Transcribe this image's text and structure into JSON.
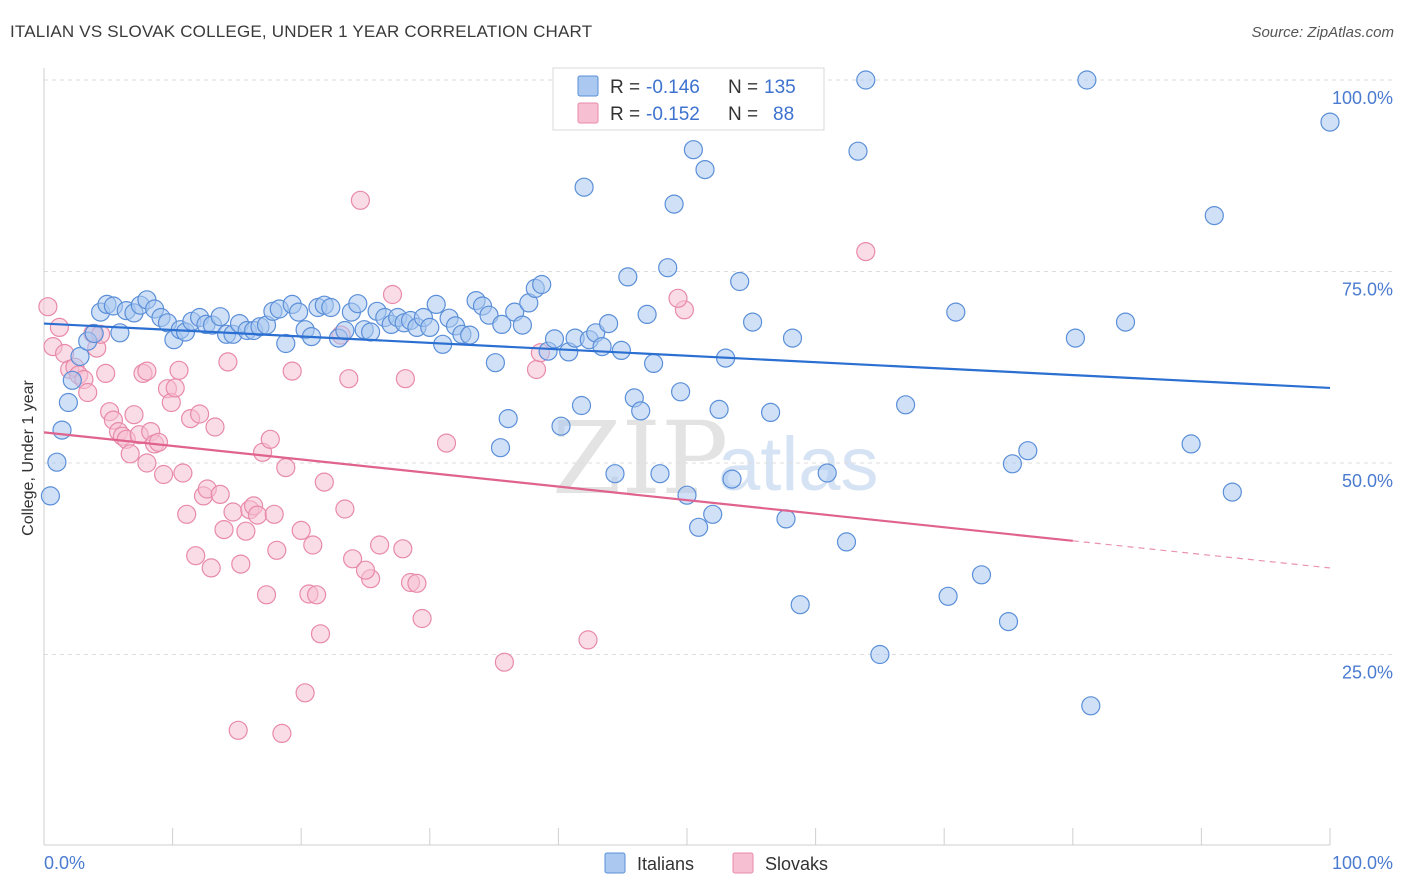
{
  "header": {
    "title": "ITALIAN VS SLOVAK COLLEGE, UNDER 1 YEAR CORRELATION CHART",
    "source": "Source: ZipAtlas.com"
  },
  "watermark": {
    "zip": "ZIP",
    "atlas": "atlas"
  },
  "legend": {
    "rows": [
      {
        "r_label": "R = ",
        "r_value": "-0.146",
        "n_label": "N = ",
        "n_value": "135"
      },
      {
        "r_label": "R = ",
        "r_value": "-0.152",
        "n_label": "N = ",
        "n_value": "88"
      }
    ]
  },
  "bottom_legend": {
    "italians": "Italians",
    "slovaks": "Slovaks"
  },
  "chart_data": {
    "type": "scatter",
    "title": "ITALIAN VS SLOVAK COLLEGE, UNDER 1 YEAR CORRELATION CHART",
    "xlabel": "",
    "ylabel": "College, Under 1 year",
    "xlim": [
      0,
      100
    ],
    "ylim": [
      0,
      100
    ],
    "x_tick_labels": [
      "0.0%",
      "100.0%"
    ],
    "y_tick_labels": [
      "100.0%",
      "75.0%",
      "50.0%",
      "25.0%"
    ],
    "y_ticks": [
      100,
      75,
      50,
      25
    ],
    "grid": true,
    "legend_position": "top-center",
    "colors": {
      "italians_fill": "#aac8f0",
      "italians_stroke": "#5b8fd8",
      "italians_line": "#2a6fd1",
      "slovaks_fill": "#f6c0d2",
      "slovaks_stroke": "#e88aa9",
      "slovaks_line": "#e0628e",
      "grid": "#dcdcdc",
      "axis_tick_text": "#4a7bd0"
    },
    "series": [
      {
        "name": "Italians",
        "R": -0.146,
        "N": 135,
        "trend": {
          "x0": 0,
          "y0": 68.2,
          "x1": 100,
          "y1": 59.8
        },
        "points": [
          [
            0.5,
            45.7
          ],
          [
            1.0,
            50.1
          ],
          [
            1.4,
            54.3
          ],
          [
            1.9,
            57.9
          ],
          [
            2.2,
            60.8
          ],
          [
            2.8,
            63.9
          ],
          [
            3.4,
            65.9
          ],
          [
            3.9,
            66.9
          ],
          [
            4.4,
            69.7
          ],
          [
            4.9,
            70.7
          ],
          [
            5.4,
            70.5
          ],
          [
            5.9,
            67.0
          ],
          [
            6.4,
            69.9
          ],
          [
            7.0,
            69.6
          ],
          [
            7.5,
            70.6
          ],
          [
            8.0,
            71.3
          ],
          [
            8.6,
            70.1
          ],
          [
            9.1,
            69.0
          ],
          [
            9.6,
            68.3
          ],
          [
            10.1,
            66.1
          ],
          [
            10.6,
            67.4
          ],
          [
            11.0,
            67.1
          ],
          [
            11.5,
            68.5
          ],
          [
            12.1,
            69.0
          ],
          [
            12.6,
            68.1
          ],
          [
            13.1,
            68.0
          ],
          [
            13.7,
            69.1
          ],
          [
            14.2,
            66.8
          ],
          [
            14.7,
            66.8
          ],
          [
            15.2,
            68.2
          ],
          [
            15.8,
            67.3
          ],
          [
            16.3,
            67.3
          ],
          [
            16.8,
            67.8
          ],
          [
            17.3,
            68.0
          ],
          [
            17.8,
            69.8
          ],
          [
            18.3,
            70.1
          ],
          [
            18.8,
            65.6
          ],
          [
            19.3,
            70.7
          ],
          [
            19.8,
            69.7
          ],
          [
            20.3,
            67.4
          ],
          [
            20.8,
            66.5
          ],
          [
            21.3,
            70.3
          ],
          [
            21.8,
            70.6
          ],
          [
            22.3,
            70.3
          ],
          [
            22.9,
            66.3
          ],
          [
            23.4,
            67.3
          ],
          [
            23.9,
            69.7
          ],
          [
            24.4,
            70.8
          ],
          [
            24.9,
            67.4
          ],
          [
            25.4,
            67.1
          ],
          [
            25.9,
            69.8
          ],
          [
            26.5,
            69.0
          ],
          [
            27.0,
            68.1
          ],
          [
            27.5,
            69.0
          ],
          [
            28.0,
            68.3
          ],
          [
            28.5,
            68.6
          ],
          [
            29.0,
            67.7
          ],
          [
            29.5,
            69.0
          ],
          [
            30.0,
            67.7
          ],
          [
            30.5,
            70.7
          ],
          [
            31.0,
            65.5
          ],
          [
            31.5,
            68.9
          ],
          [
            32.0,
            67.9
          ],
          [
            32.5,
            66.8
          ],
          [
            33.1,
            66.7
          ],
          [
            33.6,
            71.2
          ],
          [
            34.1,
            70.5
          ],
          [
            34.6,
            69.3
          ],
          [
            35.1,
            63.1
          ],
          [
            35.6,
            68.1
          ],
          [
            36.1,
            55.8
          ],
          [
            36.6,
            69.7
          ],
          [
            37.2,
            68.0
          ],
          [
            37.7,
            70.9
          ],
          [
            38.2,
            72.8
          ],
          [
            38.7,
            73.3
          ],
          [
            39.2,
            64.6
          ],
          [
            39.7,
            66.2
          ],
          [
            40.2,
            54.8
          ],
          [
            40.8,
            64.5
          ],
          [
            41.3,
            66.3
          ],
          [
            41.8,
            57.5
          ],
          [
            42.4,
            66.1
          ],
          [
            42.9,
            67.0
          ],
          [
            43.4,
            65.2
          ],
          [
            43.9,
            68.2
          ],
          [
            44.4,
            48.6
          ],
          [
            44.9,
            64.7
          ],
          [
            45.4,
            74.3
          ],
          [
            45.9,
            58.5
          ],
          [
            46.4,
            56.8
          ],
          [
            46.9,
            69.4
          ],
          [
            47.4,
            63.0
          ],
          [
            47.9,
            48.6
          ],
          [
            48.5,
            75.5
          ],
          [
            49.0,
            83.8
          ],
          [
            49.5,
            59.3
          ],
          [
            50.0,
            45.8
          ],
          [
            50.5,
            90.9
          ],
          [
            50.9,
            41.6
          ],
          [
            51.4,
            88.3
          ],
          [
            52.0,
            43.3
          ],
          [
            52.5,
            57.0
          ],
          [
            53.0,
            63.7
          ],
          [
            53.5,
            47.9
          ],
          [
            54.1,
            73.7
          ],
          [
            55.1,
            68.4
          ],
          [
            56.5,
            56.6
          ],
          [
            57.7,
            42.7
          ],
          [
            58.2,
            66.3
          ],
          [
            58.8,
            31.5
          ],
          [
            59.8,
            100.0
          ],
          [
            60.9,
            48.7
          ],
          [
            62.4,
            39.7
          ],
          [
            63.3,
            90.7
          ],
          [
            63.9,
            100.0
          ],
          [
            65.0,
            25.0
          ],
          [
            67.0,
            57.6
          ],
          [
            70.3,
            32.6
          ],
          [
            70.9,
            69.7
          ],
          [
            72.9,
            35.4
          ],
          [
            75.0,
            29.3
          ],
          [
            75.3,
            49.9
          ],
          [
            76.5,
            51.6
          ],
          [
            80.2,
            66.3
          ],
          [
            81.1,
            100.0
          ],
          [
            81.4,
            18.3
          ],
          [
            84.1,
            68.4
          ],
          [
            89.2,
            52.5
          ],
          [
            91.0,
            82.3
          ],
          [
            92.4,
            46.2
          ],
          [
            100.0,
            94.5
          ],
          [
            58.0,
            97.0
          ],
          [
            42.0,
            86.0
          ],
          [
            35.5,
            52.0
          ]
        ]
      },
      {
        "name": "Slovaks",
        "R": -0.152,
        "N": 88,
        "trend": {
          "x0": 0,
          "y0": 54.0,
          "x1": 100,
          "y1": 36.3,
          "solid_until_x": 80
        },
        "points": [
          [
            0.3,
            70.4
          ],
          [
            0.7,
            65.2
          ],
          [
            1.2,
            67.7
          ],
          [
            1.6,
            64.3
          ],
          [
            2.0,
            62.2
          ],
          [
            2.4,
            62.5
          ],
          [
            2.7,
            61.5
          ],
          [
            3.1,
            60.9
          ],
          [
            3.4,
            59.2
          ],
          [
            3.8,
            66.9
          ],
          [
            4.1,
            65.0
          ],
          [
            4.4,
            66.8
          ],
          [
            4.8,
            61.7
          ],
          [
            5.1,
            56.7
          ],
          [
            5.4,
            55.6
          ],
          [
            5.8,
            54.1
          ],
          [
            6.1,
            53.5
          ],
          [
            6.4,
            53.1
          ],
          [
            6.7,
            51.2
          ],
          [
            7.0,
            56.3
          ],
          [
            7.4,
            53.7
          ],
          [
            7.7,
            61.7
          ],
          [
            8.0,
            62.0
          ],
          [
            8.3,
            54.1
          ],
          [
            8.6,
            52.5
          ],
          [
            8.9,
            52.7
          ],
          [
            9.3,
            48.5
          ],
          [
            9.6,
            59.7
          ],
          [
            9.9,
            57.9
          ],
          [
            10.2,
            59.8
          ],
          [
            10.5,
            62.1
          ],
          [
            10.8,
            48.7
          ],
          [
            11.1,
            43.3
          ],
          [
            11.4,
            55.8
          ],
          [
            11.8,
            37.9
          ],
          [
            12.1,
            56.4
          ],
          [
            12.4,
            45.7
          ],
          [
            12.7,
            46.6
          ],
          [
            13.0,
            36.3
          ],
          [
            13.3,
            54.7
          ],
          [
            13.7,
            45.9
          ],
          [
            14.0,
            41.3
          ],
          [
            14.3,
            63.2
          ],
          [
            14.7,
            43.6
          ],
          [
            15.1,
            15.1
          ],
          [
            15.3,
            36.8
          ],
          [
            15.7,
            41.1
          ],
          [
            16.0,
            43.9
          ],
          [
            16.3,
            44.4
          ],
          [
            16.6,
            43.2
          ],
          [
            17.0,
            51.4
          ],
          [
            17.3,
            32.8
          ],
          [
            17.6,
            53.1
          ],
          [
            17.9,
            43.3
          ],
          [
            18.1,
            38.6
          ],
          [
            18.5,
            14.7
          ],
          [
            18.8,
            49.4
          ],
          [
            19.3,
            62.0
          ],
          [
            20.0,
            41.2
          ],
          [
            20.3,
            20.0
          ],
          [
            20.6,
            32.9
          ],
          [
            20.9,
            39.3
          ],
          [
            21.2,
            32.8
          ],
          [
            21.5,
            27.7
          ],
          [
            21.8,
            47.5
          ],
          [
            23.1,
            66.7
          ],
          [
            23.4,
            44.0
          ],
          [
            23.7,
            61.0
          ],
          [
            24.6,
            84.3
          ],
          [
            25.4,
            34.9
          ],
          [
            26.1,
            39.3
          ],
          [
            27.1,
            72.0
          ],
          [
            27.9,
            38.8
          ],
          [
            28.1,
            61.0
          ],
          [
            28.5,
            34.4
          ],
          [
            29.0,
            34.3
          ],
          [
            29.4,
            29.7
          ],
          [
            31.3,
            52.6
          ],
          [
            35.8,
            24.0
          ],
          [
            38.3,
            62.2
          ],
          [
            38.6,
            64.4
          ],
          [
            42.3,
            26.9
          ],
          [
            49.8,
            70.0
          ],
          [
            49.3,
            71.5
          ],
          [
            63.9,
            77.6
          ],
          [
            24.0,
            37.5
          ],
          [
            25.0,
            36.0
          ],
          [
            8.0,
            50.0
          ]
        ]
      }
    ]
  }
}
